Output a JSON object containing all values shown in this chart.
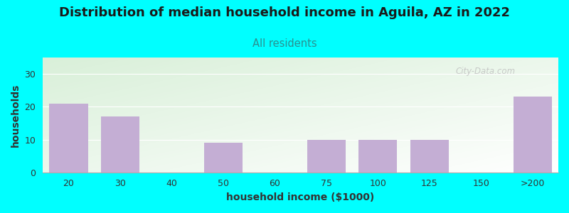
{
  "title": "Distribution of median household income in Aguila, AZ in 2022",
  "subtitle": "All residents",
  "xlabel": "household income ($1000)",
  "ylabel": "households",
  "background_color": "#00FFFF",
  "bar_color": "#c4aed4",
  "title_fontsize": 13,
  "subtitle_fontsize": 10.5,
  "subtitle_color": "#2a9090",
  "xlabel_fontsize": 10,
  "ylabel_fontsize": 10,
  "tick_fontsize": 9,
  "categories": [
    "20",
    "30",
    "40",
    "50",
    "60",
    "75",
    "100",
    "125",
    "150",
    ">200"
  ],
  "values": [
    21,
    17,
    0,
    9,
    0,
    10,
    10,
    10,
    0,
    23
  ],
  "bar_positions": [
    0,
    1,
    2,
    3,
    4,
    5,
    6,
    7,
    8,
    9
  ],
  "ylim": [
    0,
    35
  ],
  "yticks": [
    0,
    10,
    20,
    30
  ],
  "watermark": "City-Data.com",
  "plot_bg_color_top_left": "#d8ecd8",
  "plot_bg_color_bottom_right": "#ffffff"
}
